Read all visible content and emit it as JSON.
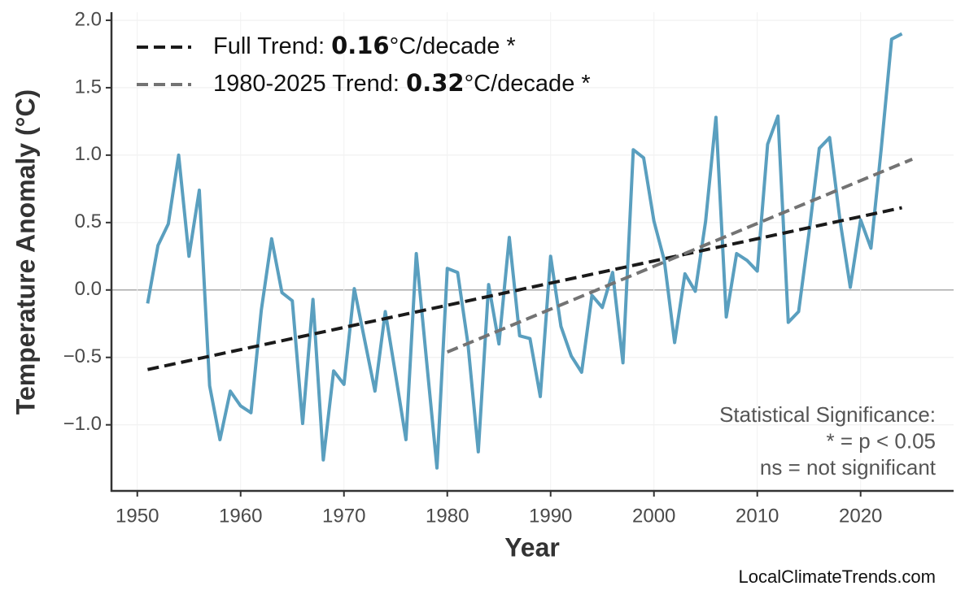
{
  "chart_data": {
    "type": "line",
    "x_label": "Year",
    "y_label": "Temperature Anomaly (°C)",
    "x": [
      1951,
      1952,
      1953,
      1954,
      1955,
      1956,
      1957,
      1958,
      1959,
      1960,
      1961,
      1962,
      1963,
      1964,
      1965,
      1966,
      1967,
      1968,
      1969,
      1970,
      1971,
      1972,
      1973,
      1974,
      1975,
      1976,
      1977,
      1978,
      1979,
      1980,
      1981,
      1982,
      1983,
      1984,
      1985,
      1986,
      1987,
      1988,
      1989,
      1990,
      1991,
      1992,
      1993,
      1994,
      1995,
      1996,
      1997,
      1998,
      1999,
      2000,
      2001,
      2002,
      2003,
      2004,
      2005,
      2006,
      2007,
      2008,
      2009,
      2010,
      2011,
      2012,
      2013,
      2014,
      2015,
      2016,
      2017,
      2018,
      2019,
      2020,
      2021,
      2022,
      2023,
      2024
    ],
    "values": [
      -0.1,
      0.33,
      0.49,
      1.0,
      0.25,
      0.74,
      -0.71,
      -1.11,
      -0.75,
      -0.86,
      -0.91,
      -0.15,
      0.38,
      -0.02,
      -0.08,
      -0.99,
      -0.07,
      -1.26,
      -0.6,
      -0.7,
      0.01,
      -0.37,
      -0.75,
      -0.16,
      -0.63,
      -1.11,
      0.27,
      -0.53,
      -1.32,
      0.16,
      0.13,
      -0.4,
      -1.2,
      0.04,
      -0.4,
      0.39,
      -0.34,
      -0.36,
      -0.79,
      0.25,
      -0.27,
      -0.49,
      -0.61,
      -0.04,
      -0.13,
      0.13,
      -0.54,
      1.04,
      0.98,
      0.51,
      0.22,
      -0.39,
      0.12,
      -0.01,
      0.51,
      1.28,
      -0.2,
      0.27,
      0.22,
      0.14,
      1.08,
      1.29,
      -0.24,
      -0.16,
      0.42,
      1.05,
      1.13,
      0.52,
      0.02,
      0.52,
      0.31,
      1.05,
      1.86,
      1.9
    ],
    "color": "#5a9fbf",
    "trend_lines": [
      {
        "label_parts": [
          "Full Trend: ",
          "0.16",
          "°C/decade *"
        ],
        "color": "#1a1a1a",
        "x": [
          1951,
          2024
        ],
        "values": [
          -0.59,
          0.61
        ]
      },
      {
        "label_parts": [
          "1980-2025 Trend: ",
          "0.32",
          "°C/decade *"
        ],
        "color": "#737373",
        "x": [
          1980,
          2025
        ],
        "values": [
          -0.46,
          0.97
        ]
      }
    ],
    "annotation": [
      "Statistical Significance:",
      "* = p < 0.05",
      "ns = not significant"
    ],
    "source": "LocalClimateTrends.com",
    "xlim": [
      1947.5,
      2029
    ],
    "ylim": [
      -1.49,
      2.06
    ],
    "xticks": [
      1950,
      1960,
      1970,
      1980,
      1990,
      2000,
      2010,
      2020
    ],
    "yticks": [
      {
        "value": -1,
        "label": "−1.0"
      },
      {
        "value": -0.5,
        "label": "−0.5"
      },
      {
        "value": 0,
        "label": "0.0"
      },
      {
        "value": 0.5,
        "label": "0.5"
      },
      {
        "value": 1,
        "label": "1.0"
      },
      {
        "value": 1.5,
        "label": "1.5"
      },
      {
        "value": 2,
        "label": "2.0"
      }
    ],
    "grid": true,
    "zero_line": true,
    "legend": "upper left"
  }
}
